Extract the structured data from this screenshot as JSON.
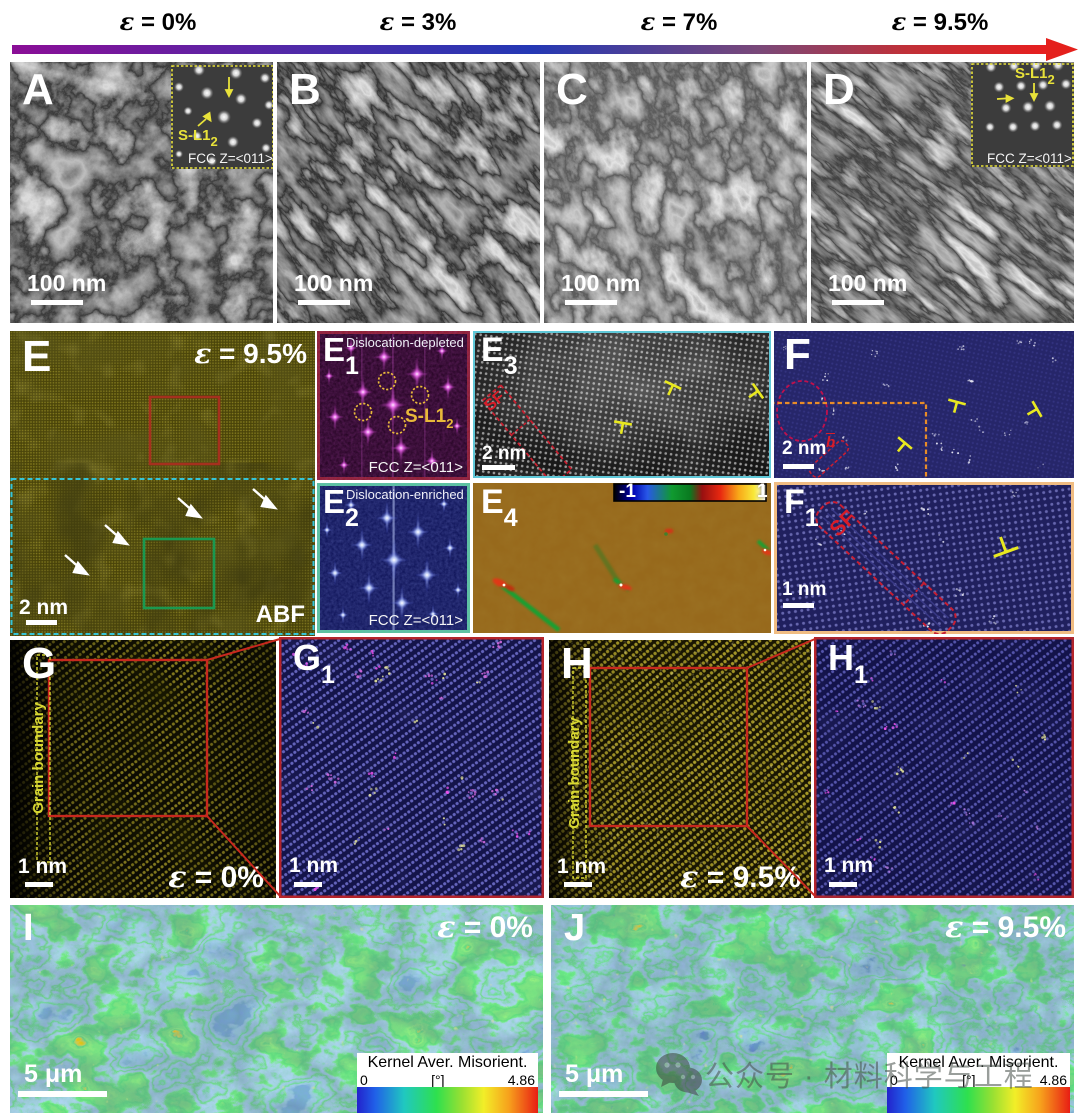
{
  "header": {
    "strain_labels": [
      "ε = 0%",
      "ε = 3%",
      "ε = 7%",
      "ε = 9.5%"
    ],
    "arrow_colors": [
      "#8a0e96",
      "#4a2caa",
      "#2438b4",
      "#7a4878",
      "#c03038",
      "#e81e1e"
    ]
  },
  "panels": {
    "a": {
      "letter": "A",
      "scale_bar": "100 nm",
      "inset": {
        "phase": "S-L1",
        "phase_sub": "2",
        "zone": "FCC Z=<011>"
      }
    },
    "b": {
      "letter": "B",
      "scale_bar": "100 nm"
    },
    "c": {
      "letter": "C",
      "scale_bar": "100 nm"
    },
    "d": {
      "letter": "D",
      "scale_bar": "100 nm",
      "inset": {
        "phase": "S-L1",
        "phase_sub": "2",
        "zone": "FCC Z=<011>"
      }
    },
    "e": {
      "letter": "E",
      "strain": "ε = 9.5%",
      "scale_bar": "2 nm",
      "mode": "ABF"
    },
    "e1": {
      "letter": "E",
      "sub": "1",
      "title": "Dislocation-depleted",
      "phase": "S-L1",
      "phase_sub": "2",
      "zone": "FCC Z=<011>"
    },
    "e2": {
      "letter": "E",
      "sub": "2",
      "title": "Dislocation-enriched",
      "zone": "FCC Z=<011>"
    },
    "e3": {
      "letter": "E",
      "sub": "3",
      "scale_bar": "2 nm",
      "annotation": "SF"
    },
    "e4": {
      "letter": "E",
      "sub": "4",
      "colorbar_min": "-1",
      "colorbar_max": "1"
    },
    "f": {
      "letter": "F",
      "scale_bar": "2 nm",
      "annotation": "b"
    },
    "f1": {
      "letter": "F",
      "sub": "1",
      "scale_bar": "1 nm",
      "annotation": "SF"
    },
    "g": {
      "letter": "G",
      "scale_bar": "1 nm",
      "strain": "ε = 0%",
      "boundary": "Grain boundary"
    },
    "g1": {
      "letter": "G",
      "sub": "1",
      "scale_bar": "1 nm"
    },
    "h": {
      "letter": "H",
      "scale_bar": "1 nm",
      "strain": "ε = 9.5%",
      "boundary": "Grain boundary"
    },
    "h1": {
      "letter": "H",
      "sub": "1",
      "scale_bar": "1 nm"
    },
    "i": {
      "letter": "I",
      "strain": "ε = 0%",
      "scale_bar": "5 μm",
      "colorbar": {
        "title": "Kernel Aver. Misorient.",
        "min": "0",
        "unit": "[°]",
        "max": "4.86"
      }
    },
    "j": {
      "letter": "J",
      "strain": "ε = 9.5%",
      "scale_bar": "5 μm",
      "colorbar": {
        "title": "Kernel Aver. Misorient.",
        "min": "0",
        "unit": "[°]",
        "max": "4.86"
      }
    }
  },
  "watermark": {
    "text": "公众号 · 材料科学与工程"
  }
}
